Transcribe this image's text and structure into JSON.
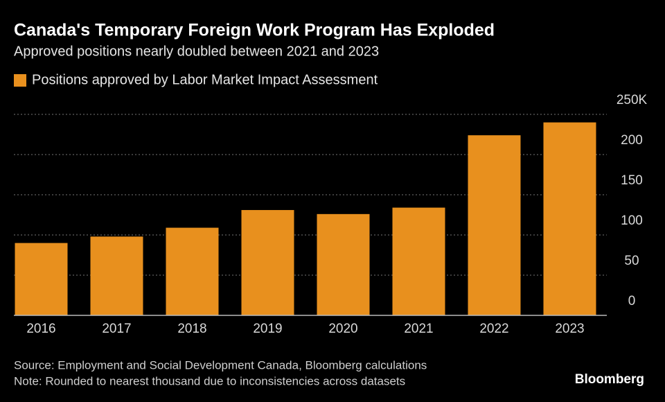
{
  "chart_data": {
    "type": "bar",
    "title": "Canada's Temporary Foreign Work Program Has Exploded",
    "subtitle": "Approved positions nearly doubled between 2021 and 2023",
    "legend": "Positions approved by Labor Market Impact Assessment",
    "categories": [
      "2016",
      "2017",
      "2018",
      "2019",
      "2020",
      "2021",
      "2022",
      "2023"
    ],
    "values": [
      90,
      98,
      109,
      131,
      126,
      134,
      224,
      240
    ],
    "color": "#e8901e",
    "ylim": [
      0,
      250
    ],
    "yticks": [
      0,
      50,
      100,
      150,
      200,
      {
        "value": 250,
        "label": "250K"
      }
    ],
    "grid": true,
    "source": "Source: Employment and Social Development Canada, Bloomberg calculations",
    "note": "Note: Rounded to nearest thousand due to inconsistencies across datasets",
    "brand": "Bloomberg"
  }
}
